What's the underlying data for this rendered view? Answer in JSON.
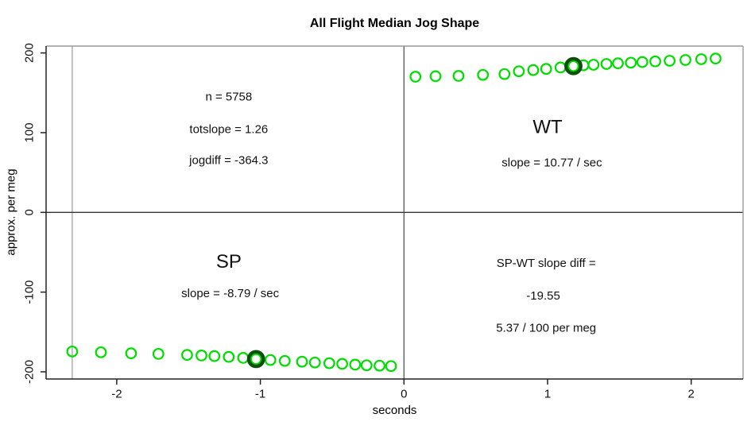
{
  "title": "All Flight Median Jog Shape",
  "chart_data": {
    "type": "scatter",
    "title": "All Flight Median Jog Shape",
    "xlabel": "seconds",
    "ylabel": "approx. per meg",
    "xlim": [
      -2.49,
      2.36
    ],
    "ylim": [
      -209,
      208
    ],
    "x_ticks": [
      -2,
      -1,
      0,
      1,
      2
    ],
    "y_ticks": [
      -200,
      -100,
      0,
      100,
      200
    ],
    "grid": false,
    "legend": false,
    "point_color": "#00dd00",
    "highlight_ring_color": "#0a4f0a",
    "axis_color": "#222222",
    "box_color": "#999999",
    "reference_lines": {
      "horizontal_y": 0,
      "vertical_x": 0,
      "gray_vertical_x": -2.31,
      "gray_line_color": "#b4b4b4",
      "horizontal_line_color": "#333333",
      "vertical_line_color": "#555555"
    },
    "series": [
      {
        "name": "SP",
        "slope_per_sec": -8.79,
        "points": [
          [
            -2.31,
            -174.5
          ],
          [
            -2.11,
            -175.5
          ],
          [
            -1.9,
            -176.8
          ],
          [
            -1.71,
            -177.5
          ],
          [
            -1.51,
            -178.8
          ],
          [
            -1.41,
            -179.5
          ],
          [
            -1.32,
            -180.3
          ],
          [
            -1.22,
            -181.3
          ],
          [
            -1.12,
            -182.5
          ],
          [
            -1.03,
            -184.0
          ],
          [
            -0.93,
            -185.2
          ],
          [
            -0.83,
            -186.3
          ],
          [
            -0.71,
            -187.3
          ],
          [
            -0.62,
            -188.3
          ],
          [
            -0.52,
            -189.2
          ],
          [
            -0.43,
            -190.0
          ],
          [
            -0.34,
            -191.0
          ],
          [
            -0.26,
            -191.8
          ],
          [
            -0.17,
            -192.3
          ],
          [
            -0.09,
            -192.8
          ]
        ]
      },
      {
        "name": "WT",
        "slope_per_sec": 10.77,
        "points": [
          [
            0.08,
            170.2
          ],
          [
            0.22,
            170.8
          ],
          [
            0.38,
            171.2
          ],
          [
            0.55,
            172.5
          ],
          [
            0.7,
            173.5
          ],
          [
            0.8,
            177.0
          ],
          [
            0.9,
            178.5
          ],
          [
            0.99,
            180.0
          ],
          [
            1.09,
            181.8
          ],
          [
            1.18,
            183.5
          ],
          [
            1.25,
            184.5
          ],
          [
            1.32,
            185.2
          ],
          [
            1.41,
            186.2
          ],
          [
            1.49,
            187.0
          ],
          [
            1.58,
            187.8
          ],
          [
            1.66,
            188.6
          ],
          [
            1.75,
            189.4
          ],
          [
            1.85,
            190.2
          ],
          [
            1.96,
            191.2
          ],
          [
            2.07,
            192.2
          ],
          [
            2.17,
            193.0
          ]
        ]
      }
    ],
    "highlighted_points": [
      {
        "series": "SP",
        "x": -1.03,
        "y": -184.0
      },
      {
        "series": "WT",
        "x": 1.18,
        "y": 183.5
      }
    ],
    "annotations": [
      {
        "id": "n-count",
        "text": "n = 5758",
        "x": -1.22,
        "y": 145,
        "size": 15
      },
      {
        "id": "totslope",
        "text": "totslope = 1.26",
        "x": -1.22,
        "y": 104,
        "size": 15
      },
      {
        "id": "jogdiff",
        "text": "jogdiff = -364.3",
        "x": -1.22,
        "y": 65,
        "size": 15
      },
      {
        "id": "wt-label",
        "text": "WT",
        "x": 1.0,
        "y": 107,
        "size": 24
      },
      {
        "id": "wt-slope",
        "text": "slope = 10.77 / sec",
        "x": 1.03,
        "y": 62,
        "size": 15
      },
      {
        "id": "sp-label",
        "text": "SP",
        "x": -1.22,
        "y": -62,
        "size": 24
      },
      {
        "id": "sp-slope",
        "text": "slope = -8.79 / sec",
        "x": -1.21,
        "y": -102,
        "size": 15
      },
      {
        "id": "diff-line1",
        "text": "SP-WT slope diff =",
        "x": 0.99,
        "y": -64,
        "size": 15
      },
      {
        "id": "diff-line2",
        "text": "-19.55",
        "x": 0.97,
        "y": -105,
        "size": 15
      },
      {
        "id": "diff-line3",
        "text": "5.37 / 100 per meg",
        "x": 0.99,
        "y": -145,
        "size": 15
      }
    ],
    "stats": {
      "n": 5758,
      "totslope": 1.26,
      "jogdiff": -364.3,
      "sp_wt_slope_diff": -19.55,
      "diff_per_100_per_meg": 5.37
    }
  }
}
